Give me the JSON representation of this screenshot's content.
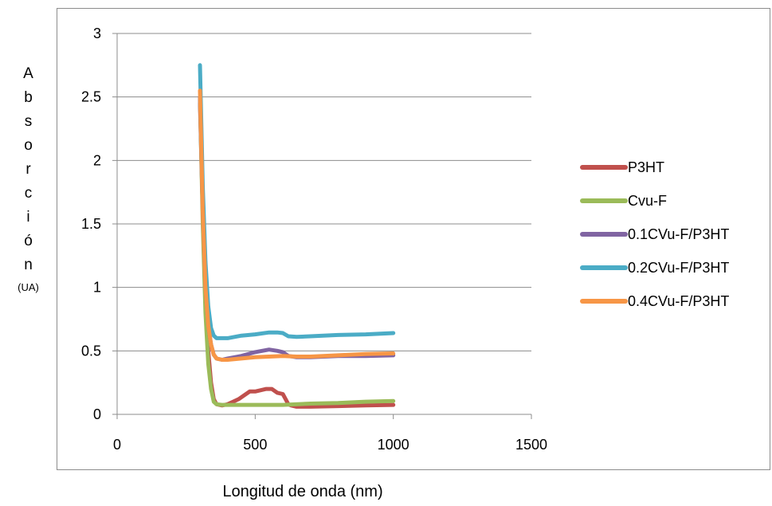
{
  "chart_data": {
    "type": "line",
    "xlabel": "Longitud de onda (nm)",
    "ylabel_letters": [
      "A",
      "b",
      "s",
      "o",
      "r",
      "c",
      "i",
      "ó",
      "n"
    ],
    "ylabel_unit": "(UA)",
    "xlim": [
      0,
      1500
    ],
    "ylim": [
      0,
      3
    ],
    "x_ticks": [
      "0",
      "500",
      "1000",
      "1500"
    ],
    "y_ticks": [
      "0",
      "0.5",
      "1",
      "1.5",
      "2",
      "2.5",
      "3"
    ],
    "grid": "horizontal",
    "legend_position": "right",
    "series": [
      {
        "name": "P3HT",
        "color": "#c0504d",
        "x": [
          300,
          310,
          320,
          330,
          340,
          350,
          360,
          380,
          400,
          420,
          440,
          460,
          480,
          500,
          520,
          540,
          560,
          580,
          600,
          610,
          620,
          630,
          650,
          700,
          800,
          900,
          1000
        ],
        "y": [
          2.45,
          1.6,
          0.95,
          0.5,
          0.25,
          0.12,
          0.08,
          0.07,
          0.08,
          0.1,
          0.12,
          0.15,
          0.18,
          0.18,
          0.19,
          0.2,
          0.2,
          0.17,
          0.16,
          0.12,
          0.08,
          0.07,
          0.06,
          0.06,
          0.065,
          0.07,
          0.075
        ]
      },
      {
        "name": "Cvu-F",
        "color": "#9bbb59",
        "x": [
          300,
          310,
          320,
          330,
          340,
          350,
          360,
          380,
          400,
          500,
          600,
          700,
          800,
          900,
          1000
        ],
        "y": [
          2.5,
          1.5,
          0.8,
          0.4,
          0.2,
          0.1,
          0.08,
          0.075,
          0.075,
          0.075,
          0.075,
          0.085,
          0.09,
          0.1,
          0.105
        ]
      },
      {
        "name": "0.1CVu-F/P3HT",
        "color": "#8064a2",
        "x": [
          300,
          310,
          320,
          330,
          340,
          350,
          360,
          380,
          400,
          450,
          500,
          550,
          580,
          600,
          620,
          650,
          700,
          800,
          900,
          1000
        ],
        "y": [
          2.5,
          1.6,
          1.0,
          0.7,
          0.55,
          0.47,
          0.44,
          0.43,
          0.44,
          0.46,
          0.49,
          0.51,
          0.5,
          0.49,
          0.46,
          0.45,
          0.45,
          0.46,
          0.46,
          0.465
        ]
      },
      {
        "name": "0.2CVu-F/P3HT",
        "color": "#4bacc6",
        "x": [
          300,
          310,
          320,
          330,
          340,
          350,
          360,
          380,
          400,
          450,
          500,
          550,
          580,
          600,
          620,
          650,
          700,
          800,
          900,
          1000
        ],
        "y": [
          2.75,
          1.8,
          1.2,
          0.85,
          0.68,
          0.62,
          0.6,
          0.6,
          0.6,
          0.62,
          0.63,
          0.645,
          0.645,
          0.64,
          0.615,
          0.61,
          0.615,
          0.625,
          0.63,
          0.64
        ]
      },
      {
        "name": "0.4CVu-F/P3HT",
        "color": "#f79646",
        "x": [
          300,
          310,
          320,
          330,
          340,
          350,
          360,
          380,
          400,
          450,
          500,
          550,
          600,
          650,
          700,
          800,
          900,
          1000
        ],
        "y": [
          2.55,
          1.6,
          1.0,
          0.7,
          0.55,
          0.47,
          0.44,
          0.43,
          0.43,
          0.44,
          0.45,
          0.455,
          0.46,
          0.455,
          0.455,
          0.465,
          0.475,
          0.48
        ]
      }
    ]
  }
}
